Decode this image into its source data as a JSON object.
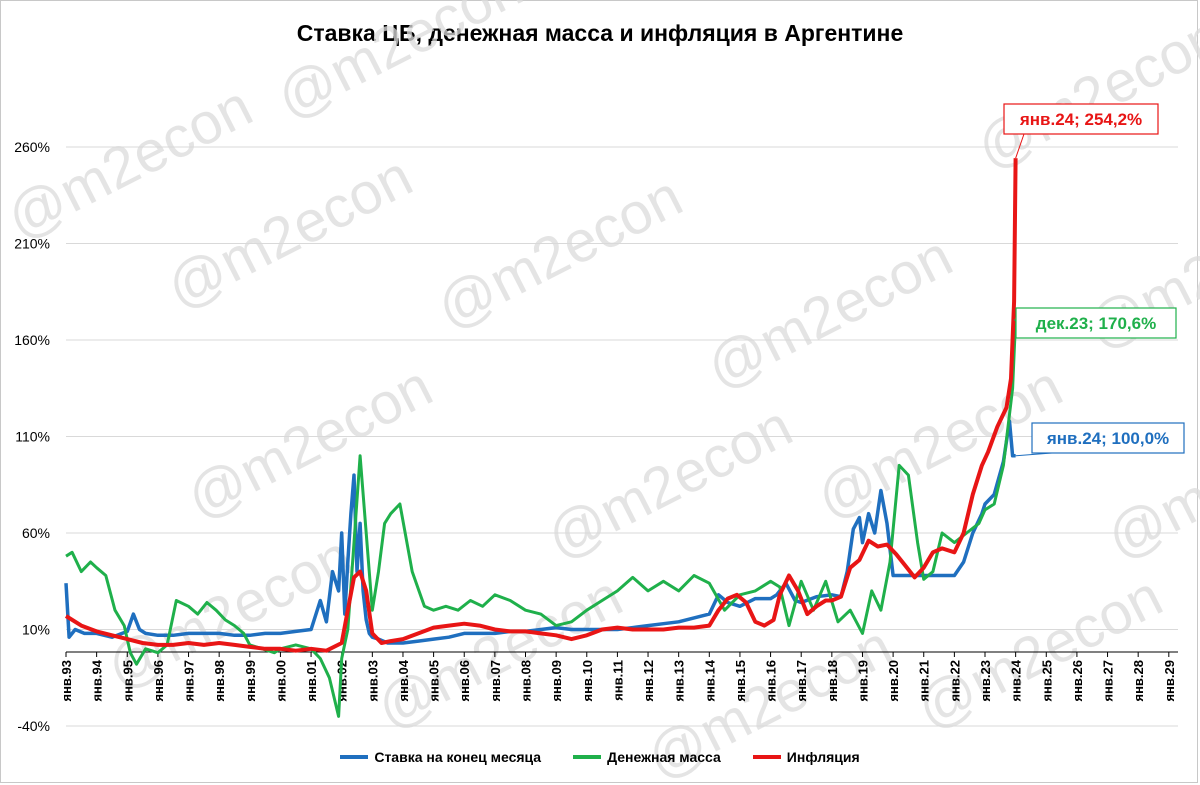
{
  "chart_data": {
    "type": "line",
    "title": "Ставка ЦБ, денежная масса и инфляция в Аргентине",
    "watermark": "@m2econ",
    "y_ticks": [
      "260%",
      "210%",
      "160%",
      "110%",
      "60%",
      "10%",
      "-40%"
    ],
    "y_tick_values": [
      260,
      210,
      160,
      110,
      60,
      10,
      -40
    ],
    "ylim": [
      -40,
      260
    ],
    "x_ticks": [
      "янв.93",
      "янв.94",
      "янв.95",
      "янв.96",
      "янв.97",
      "янв.98",
      "янв.99",
      "янв.00",
      "янв.01",
      "янв.02",
      "янв.03",
      "янв.04",
      "янв.05",
      "янв.06",
      "янв.07",
      "янв.08",
      "янв.09",
      "янв.10",
      "янв.11",
      "янв.12",
      "янв.13",
      "янв.14",
      "янв.15",
      "янв.16",
      "янв.17",
      "янв.18",
      "янв.19",
      "янв.20",
      "янв.21",
      "янв.22",
      "янв.23",
      "янв.24",
      "янв.25",
      "янв.26",
      "янв.27",
      "янв.28",
      "янв.29"
    ],
    "xlim": [
      1993,
      2029.3
    ],
    "grid": "horizontal",
    "legend_position": "bottom",
    "series": [
      {
        "name": "Ставка на конец месяца",
        "color": "#1f6fbf",
        "x": [
          1993.0,
          1993.1,
          1993.3,
          1993.6,
          1994.0,
          1994.5,
          1995.0,
          1995.2,
          1995.4,
          1995.6,
          1996.0,
          1996.5,
          1997.0,
          1997.5,
          1998.0,
          1998.5,
          1999.0,
          1999.5,
          2000.0,
          2000.5,
          2001.0,
          2001.3,
          2001.5,
          2001.7,
          2001.9,
          2002.0,
          2002.1,
          2002.2,
          2002.3,
          2002.4,
          2002.5,
          2002.6,
          2002.7,
          2002.8,
          2002.9,
          2003.0,
          2003.2,
          2003.5,
          2003.8,
          2004.0,
          2004.5,
          2005.0,
          2005.5,
          2006.0,
          2006.5,
          2007.0,
          2007.5,
          2008.0,
          2008.5,
          2009.0,
          2009.5,
          2010.0,
          2010.5,
          2011.0,
          2011.5,
          2012.0,
          2012.5,
          2013.0,
          2013.5,
          2014.0,
          2014.3,
          2014.6,
          2015.0,
          2015.5,
          2016.0,
          2016.2,
          2016.5,
          2016.8,
          2017.0,
          2017.5,
          2018.0,
          2018.3,
          2018.5,
          2018.7,
          2018.9,
          2019.0,
          2019.2,
          2019.4,
          2019.6,
          2019.8,
          2020.0,
          2020.3,
          2020.6,
          2021.0,
          2021.5,
          2022.0,
          2022.3,
          2022.6,
          2022.9,
          2023.0,
          2023.3,
          2023.6,
          2023.8,
          2023.9,
          2024.0
        ],
        "values": [
          34,
          6,
          10,
          8,
          8,
          6,
          9,
          18,
          10,
          8,
          7,
          7,
          8,
          8,
          8,
          7,
          7,
          8,
          8,
          9,
          10,
          25,
          14,
          40,
          30,
          60,
          18,
          45,
          70,
          90,
          40,
          65,
          30,
          15,
          8,
          6,
          5,
          3,
          3,
          3,
          4,
          5,
          6,
          8,
          8,
          8,
          9,
          9,
          10,
          11,
          10,
          10,
          10,
          10,
          11,
          12,
          13,
          14,
          16,
          18,
          28,
          24,
          22,
          26,
          26,
          28,
          34,
          25,
          24,
          27,
          28,
          27,
          40,
          62,
          68,
          55,
          70,
          60,
          82,
          65,
          38,
          38,
          38,
          38,
          38,
          38,
          45,
          60,
          70,
          75,
          80,
          97,
          118,
          100,
          100
        ]
      },
      {
        "name": "Денежная масса",
        "color": "#1fb04b",
        "x": [
          1993.0,
          1993.2,
          1993.5,
          1993.8,
          1994.0,
          1994.3,
          1994.6,
          1994.9,
          1995.1,
          1995.3,
          1995.6,
          1996.0,
          1996.3,
          1996.6,
          1997.0,
          1997.3,
          1997.6,
          1997.9,
          1998.2,
          1998.5,
          1998.8,
          1999.0,
          1999.4,
          1999.8,
          2000.0,
          2000.5,
          2001.0,
          2001.3,
          2001.6,
          2001.9,
          2002.0,
          2002.2,
          2002.4,
          2002.6,
          2002.8,
          2003.0,
          2003.2,
          2003.4,
          2003.6,
          2003.9,
          2004.3,
          2004.7,
          2005.0,
          2005.4,
          2005.8,
          2006.2,
          2006.6,
          2007.0,
          2007.5,
          2008.0,
          2008.5,
          2009.0,
          2009.5,
          2010.0,
          2010.5,
          2011.0,
          2011.5,
          2012.0,
          2012.5,
          2013.0,
          2013.5,
          2014.0,
          2014.5,
          2015.0,
          2015.5,
          2016.0,
          2016.3,
          2016.6,
          2017.0,
          2017.4,
          2017.8,
          2018.2,
          2018.6,
          2019.0,
          2019.3,
          2019.6,
          2019.9,
          2020.2,
          2020.5,
          2020.8,
          2021.0,
          2021.3,
          2021.6,
          2022.0,
          2022.4,
          2022.8,
          2023.0,
          2023.3,
          2023.6,
          2023.9,
          2024.0
        ],
        "values": [
          48,
          50,
          40,
          45,
          42,
          38,
          20,
          12,
          -2,
          -8,
          0,
          -2,
          2,
          25,
          22,
          18,
          24,
          20,
          15,
          12,
          8,
          2,
          0,
          -2,
          0,
          2,
          0,
          -5,
          -15,
          -35,
          -5,
          10,
          55,
          100,
          60,
          20,
          40,
          65,
          70,
          75,
          40,
          22,
          20,
          22,
          20,
          25,
          22,
          28,
          25,
          20,
          18,
          12,
          14,
          20,
          25,
          30,
          37,
          30,
          35,
          30,
          38,
          34,
          20,
          28,
          30,
          35,
          32,
          12,
          35,
          20,
          35,
          14,
          20,
          8,
          30,
          20,
          45,
          95,
          90,
          55,
          36,
          40,
          60,
          55,
          60,
          65,
          72,
          75,
          95,
          135,
          170.6
        ]
      },
      {
        "name": "Инфляция",
        "color": "#e81515",
        "x": [
          1993.0,
          1993.5,
          1994.0,
          1994.5,
          1995.0,
          1995.5,
          1996.0,
          1996.5,
          1997.0,
          1997.5,
          1998.0,
          1998.5,
          1999.0,
          1999.5,
          2000.0,
          2000.5,
          2001.0,
          2001.5,
          2002.0,
          2002.2,
          2002.4,
          2002.6,
          2002.8,
          2003.0,
          2003.3,
          2003.6,
          2004.0,
          2004.5,
          2005.0,
          2005.5,
          2006.0,
          2006.5,
          2007.0,
          2007.5,
          2008.0,
          2008.5,
          2009.0,
          2009.5,
          2010.0,
          2010.5,
          2011.0,
          2011.5,
          2012.0,
          2012.5,
          2013.0,
          2013.5,
          2014.0,
          2014.3,
          2014.6,
          2014.9,
          2015.2,
          2015.5,
          2015.8,
          2016.1,
          2016.3,
          2016.6,
          2016.9,
          2017.2,
          2017.5,
          2017.8,
          2018.0,
          2018.3,
          2018.6,
          2018.9,
          2019.2,
          2019.5,
          2019.8,
          2020.1,
          2020.4,
          2020.7,
          2021.0,
          2021.3,
          2021.6,
          2022.0,
          2022.3,
          2022.6,
          2022.9,
          2023.1,
          2023.4,
          2023.7,
          2023.85,
          2023.95,
          2024.0
        ],
        "values": [
          17,
          12,
          9,
          7,
          5,
          3,
          2,
          2,
          3,
          2,
          3,
          2,
          1,
          0,
          0,
          -1,
          0,
          -1,
          3,
          20,
          37,
          40,
          30,
          8,
          3,
          4,
          5,
          8,
          11,
          12,
          13,
          12,
          10,
          9,
          9,
          8,
          7,
          5,
          7,
          10,
          11,
          10,
          10,
          10,
          11,
          11,
          12,
          20,
          26,
          28,
          24,
          14,
          12,
          15,
          28,
          38,
          30,
          18,
          22,
          25,
          25,
          27,
          42,
          46,
          56,
          53,
          54,
          49,
          43,
          37,
          42,
          50,
          52,
          50,
          60,
          80,
          95,
          102,
          115,
          125,
          140,
          180,
          254.2
        ]
      }
    ],
    "annotations": [
      {
        "text": "янв.24; 254,2%",
        "x": 2024.0,
        "y": 254.2,
        "color": "#e81515"
      },
      {
        "text": "дек.23; 170,6%",
        "x": 2023.95,
        "y": 170.6,
        "color": "#1fb04b"
      },
      {
        "text": "янв.24; 100,0%",
        "x": 2024.0,
        "y": 100.0,
        "color": "#1f6fbf"
      }
    ]
  }
}
